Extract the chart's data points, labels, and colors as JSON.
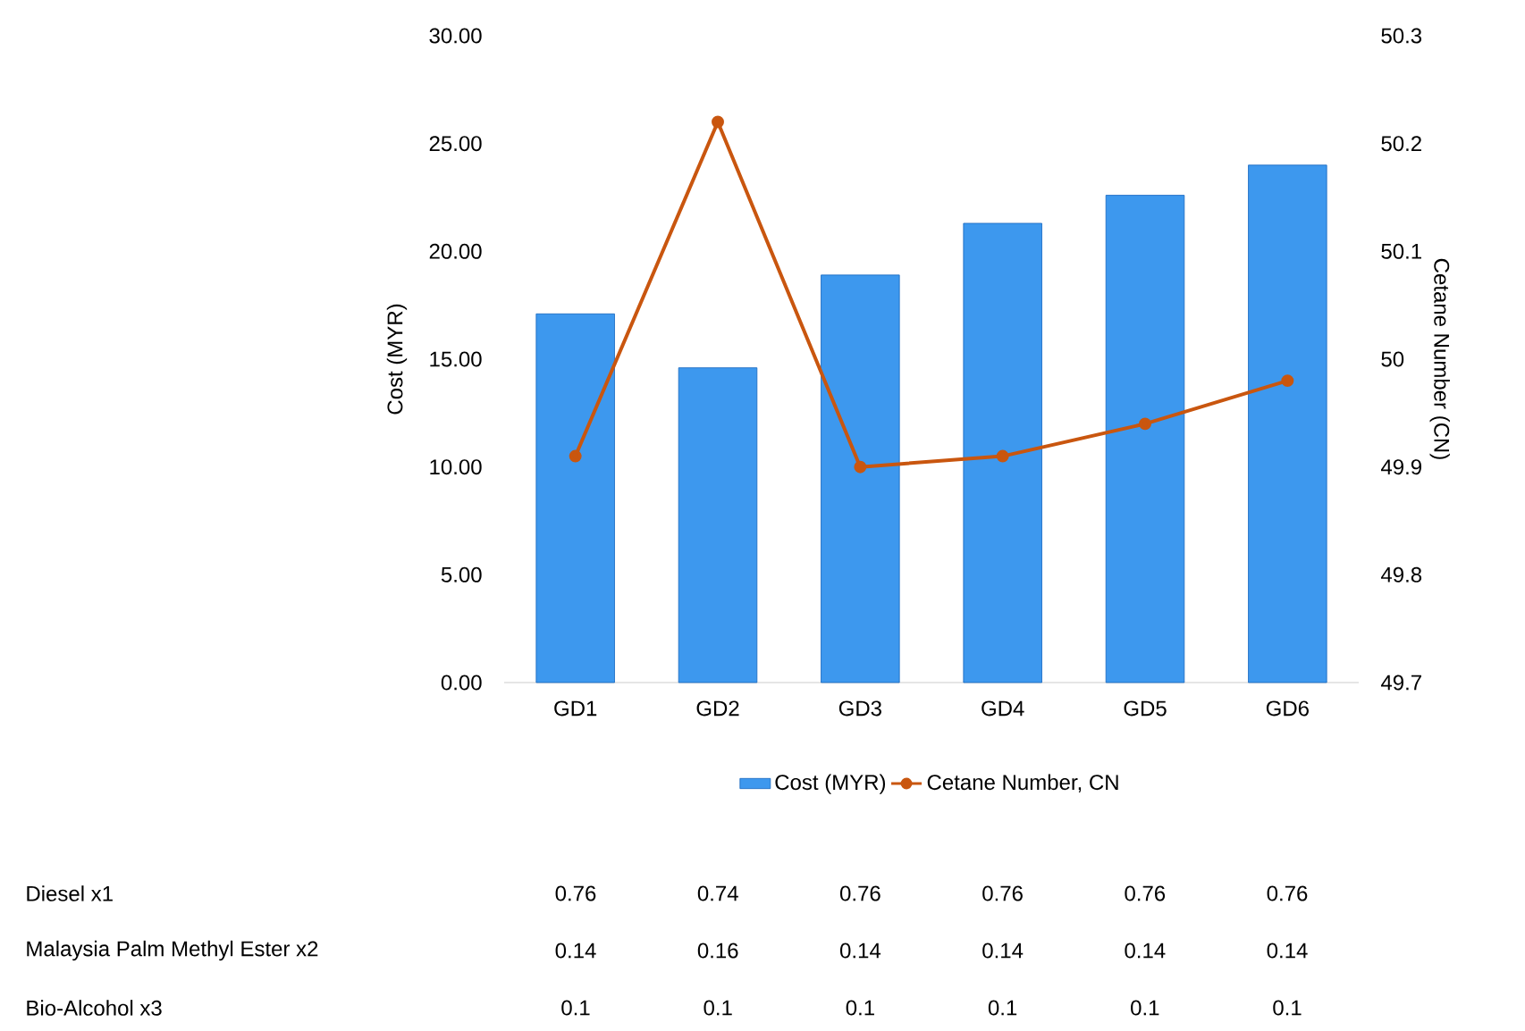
{
  "chart_data": [
    {
      "type": "bar",
      "categories": [
        "GD1",
        "GD2",
        "GD3",
        "GD4",
        "GD5",
        "GD6"
      ],
      "ylabel": "Cost (MYR)",
      "y2label": "Cetane Number (CN)",
      "ylim": [
        0,
        30
      ],
      "yticks": [
        {
          "value": 0,
          "label": "0.00"
        },
        {
          "value": 5,
          "label": "5.00"
        },
        {
          "value": 10,
          "label": "10.00"
        },
        {
          "value": 15,
          "label": "15.00"
        },
        {
          "value": 20,
          "label": "20.00"
        },
        {
          "value": 25,
          "label": "25.00"
        },
        {
          "value": 30,
          "label": "30.00"
        }
      ],
      "y2lim": [
        49.7,
        50.3
      ],
      "y2ticks": [
        49.7,
        49.8,
        49.9,
        50,
        50.1,
        50.2,
        50.3
      ],
      "legend": "bottom",
      "series": [
        {
          "name": "Cost  (MYR)",
          "color": "#3d98ee",
          "values": [
            17.1,
            14.6,
            18.9,
            21.3,
            22.6,
            24.0
          ]
        },
        {
          "name": "Cetane Number, CN",
          "type": "line",
          "axis": "y2",
          "marker": "circle",
          "color": "#c9560f",
          "values": [
            49.91,
            50.22,
            49.9,
            49.91,
            49.94,
            49.98
          ]
        }
      ]
    },
    {
      "type": "other",
      "annotations": [
        "Diesel x1",
        "0.76",
        "0.74",
        "0.76",
        "0.76",
        "0.76",
        "0.76",
        "Malaysia Palm Methyl Ester x2",
        "0.14",
        "0.16",
        "0.14",
        "0.14",
        "0.14",
        "0.14",
        "Bio-Alcohol x3",
        "0.1",
        "0.1",
        "0.1",
        "0.1",
        "0.1",
        "0.1"
      ]
    }
  ]
}
